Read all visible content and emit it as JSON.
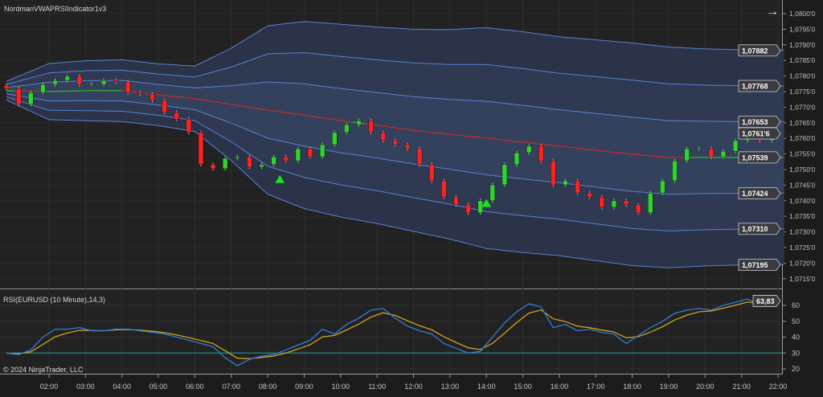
{
  "header": {
    "indicator_title": "NordmanVWAPRSIIndicator1v3",
    "arrow_icon": "arrow-right-icon"
  },
  "rsi_panel": {
    "title": "RSI(EURUSD (10 Minute),14,3)",
    "last_value_label": "63,83"
  },
  "footer": {
    "copyright": "© 2024 NinjaTrader, LLC"
  },
  "colors": {
    "up": "#2fd42f",
    "down": "#ff2222",
    "band": "#5b82d6",
    "vwap_above": "#2fbf2f",
    "vwap_below": "#cc2a2a",
    "rsi": "#2f7fd8",
    "rsi_signal": "#d4a020",
    "rsi_level": "#1f8a8a",
    "signal_triangle": "#22dd22"
  },
  "chart_data": [
    {
      "type": "candlestick",
      "symbol": "EURUSD",
      "interval": "10 Minute",
      "price_axis": {
        "ylim": [
          1.0712,
          1.0802
        ],
        "tick_labels": [
          "1,0800'0",
          "1,0795'0",
          "1,0790'0",
          "1,0785'0",
          "1,0780'0",
          "1,0775'0",
          "1,0770'0",
          "1,0765'0",
          "1,0760'0",
          "1,0755'0",
          "1,0750'0",
          "1,0745'0",
          "1,0740'0",
          "1,0735'0",
          "1,0730'0",
          "1,0725'0",
          "1,0720'0",
          "1,0715'0"
        ]
      },
      "time_axis": {
        "tick_labels": [
          "02:00",
          "03:00",
          "04:00",
          "05:00",
          "06:00",
          "07:00",
          "08:00",
          "09:00",
          "10:00",
          "11:00",
          "12:00",
          "13:00",
          "14:00",
          "15:00",
          "16:00",
          "17:00",
          "18:00",
          "19:00",
          "20:00",
          "21:00",
          "22:00"
        ]
      },
      "start_time": "00:50",
      "step_minutes": 20,
      "close": [
        1.0776,
        1.07709,
        1.07747,
        1.07773,
        1.07786,
        1.07799,
        1.07773,
        1.07773,
        1.07786,
        1.07781,
        1.07747,
        1.07742,
        1.07722,
        1.07683,
        1.07662,
        1.07619,
        1.07516,
        1.07503,
        1.07536,
        1.07541,
        1.07508,
        1.07516,
        1.07541,
        1.07528,
        1.07567,
        1.07541,
        1.0758,
        1.07619,
        1.07644,
        1.07657,
        1.07619,
        1.07593,
        1.0758,
        1.07567,
        1.07516,
        1.07464,
        1.07412,
        1.07387,
        1.07361,
        1.074,
        1.07451,
        1.07516,
        1.07554,
        1.07575,
        1.07528,
        1.07451,
        1.07464,
        1.07425,
        1.07412,
        1.07379,
        1.074,
        1.07387,
        1.07361,
        1.07425,
        1.07464,
        1.07528,
        1.07567,
        1.07567,
        1.07541,
        1.07559,
        1.07593,
        1.07606,
        1.07593,
        1.07616
      ],
      "vwap_bands": {
        "times": [
          "00:50",
          "02:00",
          "03:00",
          "04:00",
          "05:00",
          "06:00",
          "07:00",
          "08:00",
          "09:00",
          "10:00",
          "11:00",
          "12:00",
          "13:00",
          "14:00",
          "15:00",
          "16:00",
          "17:00",
          "18:00",
          "19:00",
          "20:00",
          "21:00",
          "22:10"
        ],
        "vwap": [
          1.07753,
          1.0775,
          1.07753,
          1.07753,
          1.0774,
          1.07727,
          1.07709,
          1.07691,
          1.07675,
          1.07657,
          1.07642,
          1.07626,
          1.07613,
          1.07601,
          1.07588,
          1.07575,
          1.07562,
          1.07549,
          1.07539,
          1.07539,
          1.07539,
          1.07539
        ],
        "std_dev": [
          0.0001,
          0.0003,
          0.00032,
          0.00033,
          0.00033,
          0.00035,
          0.0006,
          0.0009,
          0.001,
          0.00103,
          0.00105,
          0.00108,
          0.00112,
          0.00118,
          0.00118,
          0.00117,
          0.00118,
          0.00119,
          0.00118,
          0.00116,
          0.00115,
          0.001145
        ],
        "multipliers": [
          1,
          2,
          3
        ]
      },
      "right_labels": [
        "1,07882",
        "1,07768",
        "1,07653",
        "1,07616",
        "1,07539",
        "1,07424",
        "1,07310",
        "1,07195"
      ],
      "last_price_label": "1,0761'6",
      "buy_signals": [
        "08:20",
        "14:00"
      ]
    },
    {
      "type": "line",
      "title": "RSI(EURUSD (10 Minute),14,3)",
      "ylim": [
        13,
        67
      ],
      "tick_labels": [
        "20",
        "30",
        "40",
        "50",
        "60"
      ],
      "level": 30,
      "start_time": "00:50",
      "step_minutes": 20,
      "rsi": [
        30,
        29,
        32,
        40,
        45,
        45,
        46,
        44,
        44,
        45,
        45,
        44,
        43,
        42,
        40,
        38,
        36,
        34,
        27,
        22,
        26,
        28,
        29,
        32,
        35,
        38,
        45,
        42,
        48,
        52,
        57,
        58,
        52,
        47,
        44,
        42,
        36,
        33,
        30,
        31,
        40,
        49,
        56,
        61,
        59,
        46,
        48,
        44,
        45,
        43,
        42,
        36,
        41,
        46,
        50,
        55,
        57,
        58,
        57,
        60,
        62,
        64,
        60,
        63.83
      ],
      "last_value": 63.83
    }
  ]
}
